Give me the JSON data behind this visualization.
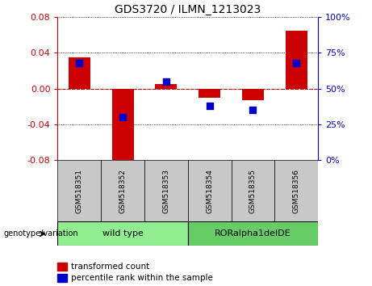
{
  "title": "GDS3720 / ILMN_1213023",
  "samples": [
    "GSM518351",
    "GSM518352",
    "GSM518353",
    "GSM518354",
    "GSM518355",
    "GSM518356"
  ],
  "red_values": [
    0.035,
    -0.083,
    0.005,
    -0.01,
    -0.013,
    0.065
  ],
  "blue_values": [
    68,
    30,
    55,
    38,
    35,
    68
  ],
  "ylim_left": [
    -0.08,
    0.08
  ],
  "ylim_right": [
    0,
    100
  ],
  "yticks_left": [
    -0.08,
    -0.04,
    0,
    0.04,
    0.08
  ],
  "yticks_right": [
    0,
    25,
    50,
    75,
    100
  ],
  "groups": [
    {
      "label": "wild type",
      "indices": [
        0,
        1,
        2
      ],
      "color": "#90EE90"
    },
    {
      "label": "RORalpha1delDE",
      "indices": [
        3,
        4,
        5
      ],
      "color": "#66CC66"
    }
  ],
  "red_color": "#CC0000",
  "blue_color": "#0000CC",
  "bar_width": 0.5,
  "background_sample": "#C8C8C8",
  "legend_red_label": "transformed count",
  "legend_blue_label": "percentile rank within the sample",
  "genotype_label": "genotype/variation"
}
